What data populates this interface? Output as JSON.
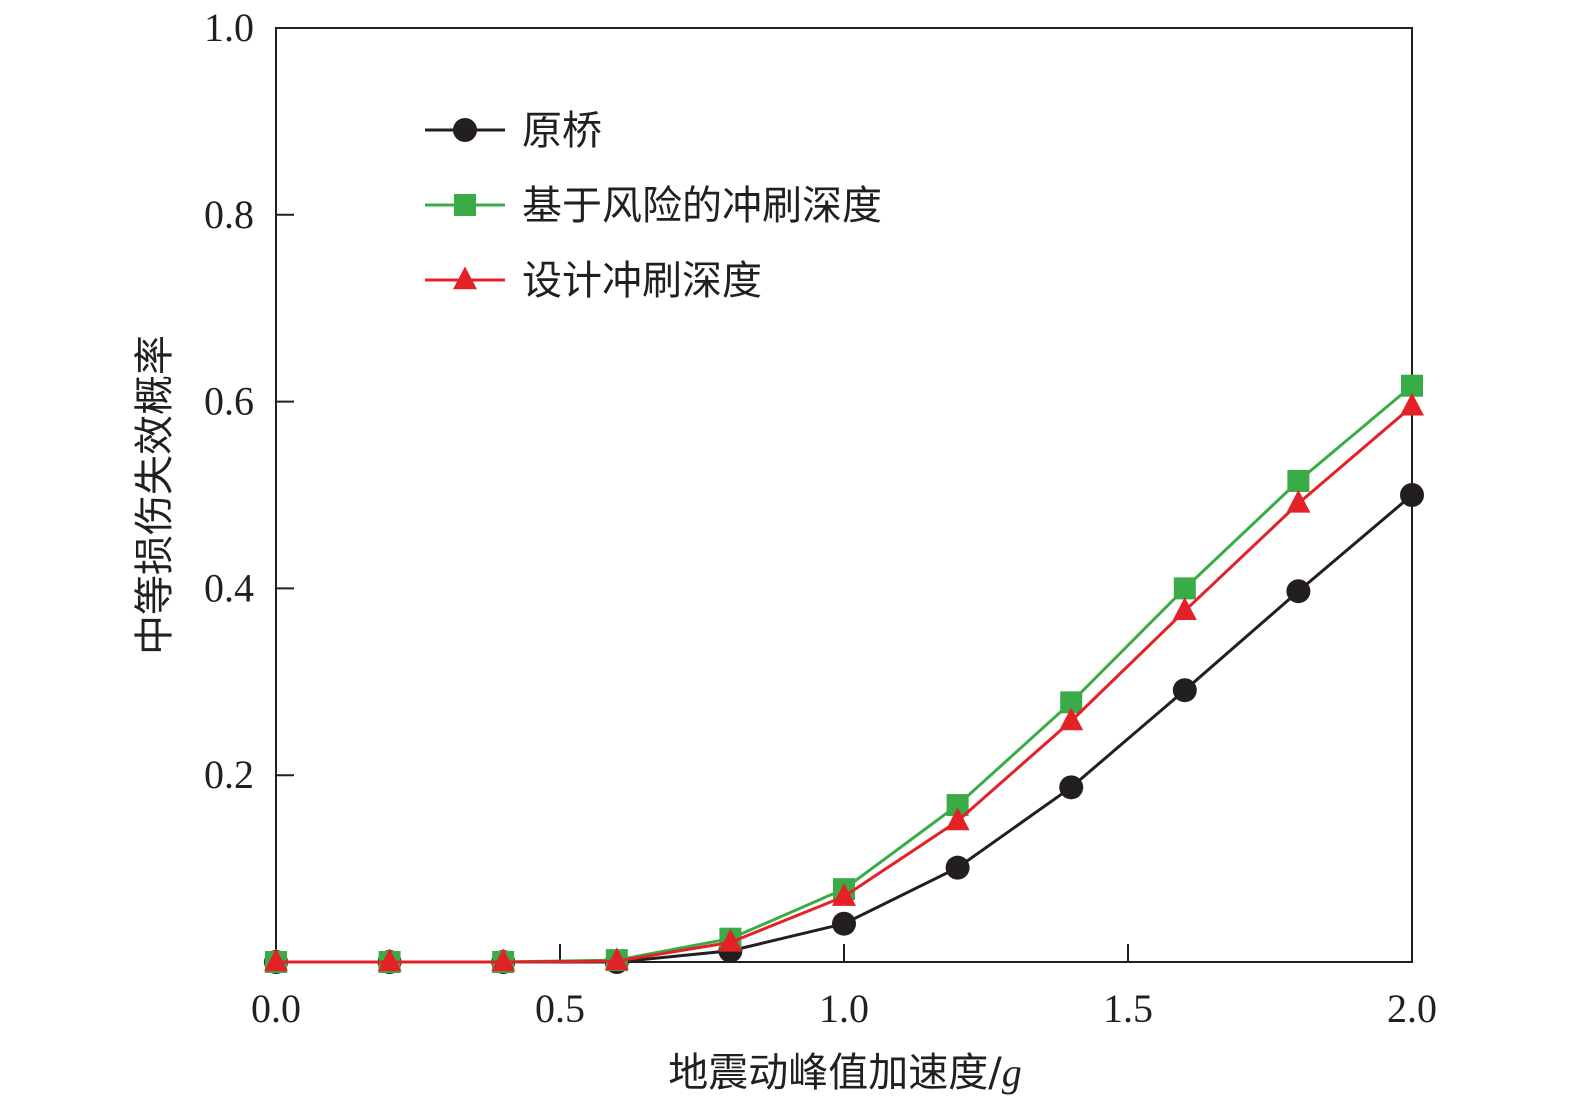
{
  "chart_data": {
    "type": "line",
    "xlabel": "地震动峰值加速度/",
    "xlabel_unit": "g",
    "ylabel": "中等损伤失效概率",
    "xlim": [
      0.0,
      2.0
    ],
    "ylim": [
      0.0,
      1.0
    ],
    "x_ticks": [
      "0.0",
      "0.5",
      "1.0",
      "1.5",
      "2.0"
    ],
    "y_ticks": [
      "0.2",
      "0.4",
      "0.6",
      "0.8",
      "1.0"
    ],
    "x": [
      0.0,
      0.2,
      0.4,
      0.6,
      0.8,
      1.0,
      1.2,
      1.4,
      1.6,
      1.8,
      2.0
    ],
    "series": [
      {
        "name": "原桥",
        "color": "#231f20",
        "marker": "circle",
        "values": [
          0.0,
          0.0,
          0.0,
          0.0,
          0.012,
          0.041,
          0.101,
          0.187,
          0.291,
          0.397,
          0.5
        ]
      },
      {
        "name": "基于风险的冲刷深度",
        "color": "#3aac47",
        "marker": "square",
        "values": [
          0.0,
          0.0,
          0.0,
          0.002,
          0.025,
          0.078,
          0.168,
          0.278,
          0.4,
          0.515,
          0.617
        ]
      },
      {
        "name": "设计冲刷深度",
        "color": "#e32228",
        "marker": "triangle",
        "values": [
          0.0,
          0.0,
          0.0,
          0.001,
          0.021,
          0.07,
          0.151,
          0.258,
          0.376,
          0.491,
          0.595
        ]
      }
    ],
    "legend_position": "top-left",
    "grid": false
  }
}
